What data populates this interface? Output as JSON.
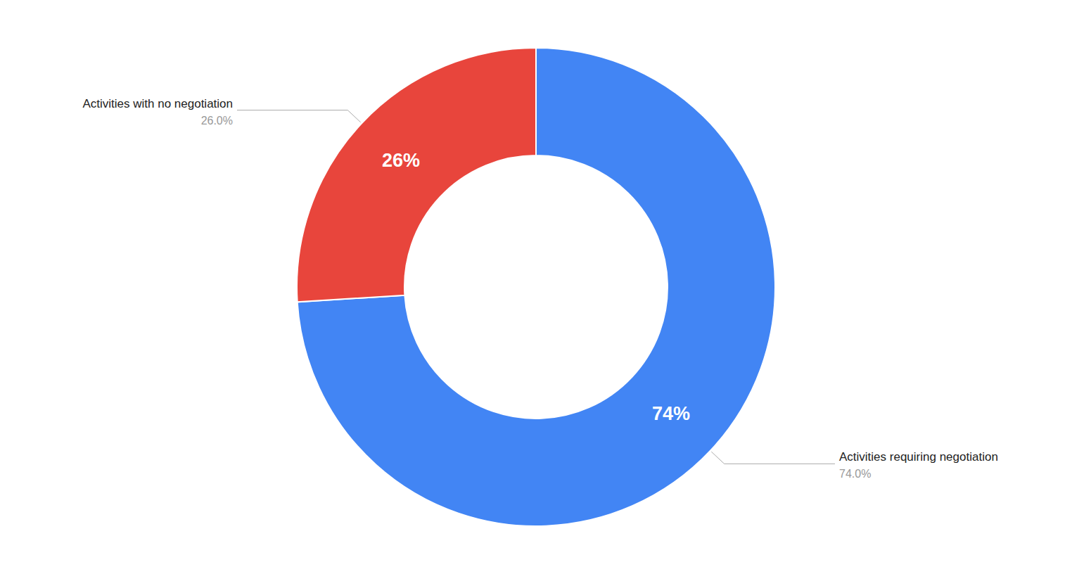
{
  "chart_data": {
    "type": "pie",
    "categories": [
      "Activities requiring negotiation",
      "Activities with no negotiation"
    ],
    "values": [
      74,
      26
    ],
    "value_labels": [
      "74%",
      "26%"
    ],
    "callout_labels": [
      "74.0%",
      "26.0%"
    ],
    "colors": [
      "#4285F4",
      "#E8453C"
    ],
    "data_labels": true
  }
}
